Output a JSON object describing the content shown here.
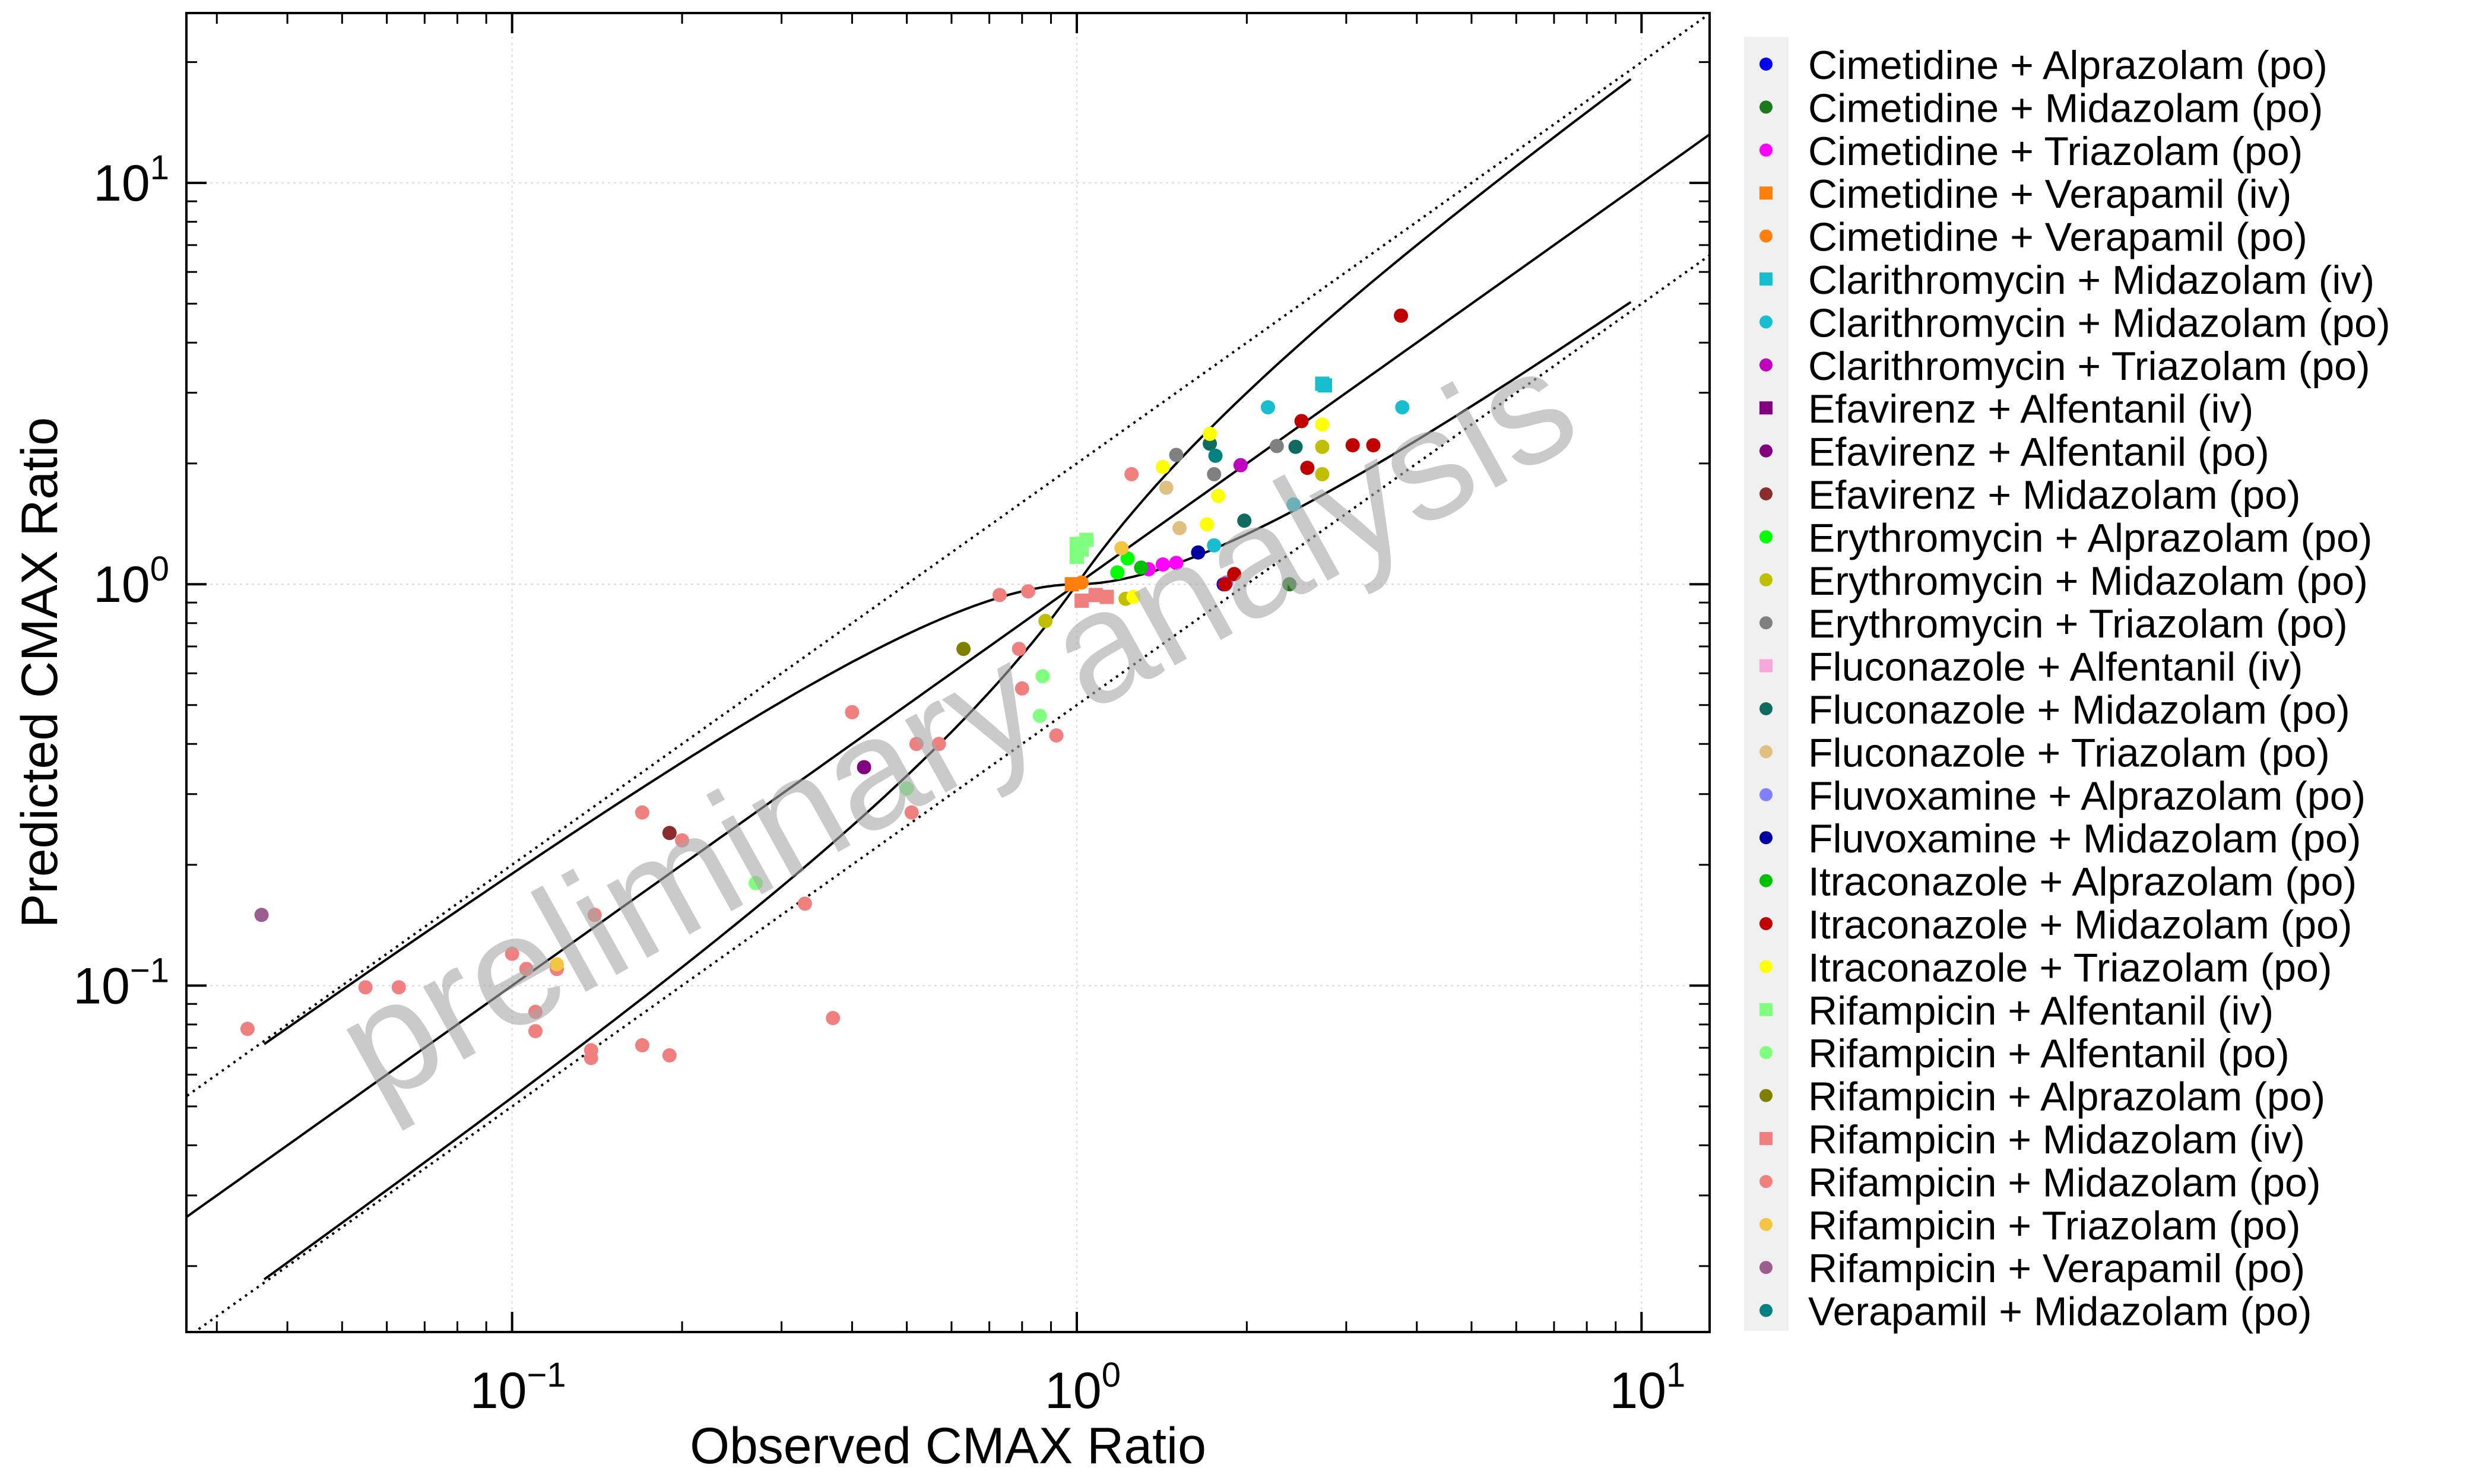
{
  "chart_data": {
    "type": "scatter",
    "xlabel": "Observed CMAX Ratio",
    "ylabel": "Predicted CMAX Ratio",
    "x_scale": "log",
    "y_scale": "log",
    "xlim": [
      0.0265,
      13.2
    ],
    "ylim": [
      0.0137,
      26.5
    ],
    "grid": true,
    "legend_position": "right",
    "watermark": "preliminary analysis",
    "x_ticks": [
      {
        "base": "10",
        "exp": "−1",
        "value": 0.1
      },
      {
        "base": "10",
        "exp": "0",
        "value": 1
      },
      {
        "base": "10",
        "exp": "1",
        "value": 10
      }
    ],
    "y_ticks": [
      {
        "base": "10",
        "exp": "−1",
        "value": 0.1
      },
      {
        "base": "10",
        "exp": "0",
        "value": 1
      },
      {
        "base": "10",
        "exp": "1",
        "value": 10
      }
    ],
    "series": [
      {
        "name": "Cimetidine + Alprazolam (po)",
        "color": "#0000ff",
        "marker": "circle",
        "points": [
          [
            1.82,
            1.0
          ]
        ]
      },
      {
        "name": "Cimetidine + Midazolam (po)",
        "color": "#1b7a1b",
        "marker": "circle",
        "points": [
          [
            2.38,
            1.0
          ]
        ]
      },
      {
        "name": "Cimetidine + Triazolam (po)",
        "color": "#ff00ff",
        "marker": "circle",
        "points": [
          [
            1.42,
            1.12
          ],
          [
            1.5,
            1.13
          ],
          [
            1.34,
            1.09
          ]
        ]
      },
      {
        "name": "Cimetidine + Verapamil (iv)",
        "color": "#ff7f0e",
        "marker": "square",
        "points": [
          [
            0.98,
            1.0
          ]
        ]
      },
      {
        "name": "Cimetidine + Verapamil (po)",
        "color": "#ff7f0e",
        "marker": "circle",
        "points": [
          [
            1.02,
            1.01
          ]
        ]
      },
      {
        "name": "Clarithromycin + Midazolam (iv)",
        "color": "#17becf",
        "marker": "square",
        "points": [
          [
            2.72,
            3.16
          ],
          [
            2.75,
            3.13
          ]
        ]
      },
      {
        "name": "Clarithromycin + Midazolam (po)",
        "color": "#17becf",
        "marker": "circle",
        "points": [
          [
            2.18,
            2.76
          ],
          [
            3.77,
            2.76
          ],
          [
            2.42,
            1.58
          ],
          [
            1.75,
            1.25
          ]
        ]
      },
      {
        "name": "Clarithromycin + Triazolam (po)",
        "color": "#bf00bf",
        "marker": "circle",
        "points": [
          [
            1.95,
            1.98
          ]
        ]
      },
      {
        "name": "Efavirenz + Alfentanil (iv)",
        "color": "#800080",
        "marker": "square",
        "points": []
      },
      {
        "name": "Efavirenz + Alfentanil (po)",
        "color": "#800080",
        "marker": "circle",
        "points": [
          [
            0.42,
            0.35
          ]
        ]
      },
      {
        "name": "Efavirenz + Midazolam (po)",
        "color": "#8c2d2d",
        "marker": "circle",
        "points": [
          [
            0.19,
            0.24
          ]
        ]
      },
      {
        "name": "Erythromycin + Alprazolam (po)",
        "color": "#00ff00",
        "marker": "circle",
        "points": [
          [
            1.23,
            1.16
          ],
          [
            1.18,
            1.07
          ]
        ]
      },
      {
        "name": "Erythromycin + Midazolam (po)",
        "color": "#bfbf00",
        "marker": "circle",
        "points": [
          [
            0.88,
            0.81
          ],
          [
            1.22,
            0.92
          ],
          [
            2.72,
            2.2
          ],
          [
            2.72,
            1.88
          ]
        ]
      },
      {
        "name": "Erythromycin + Triazolam (po)",
        "color": "#808080",
        "marker": "circle",
        "points": [
          [
            1.5,
            2.1
          ],
          [
            1.75,
            1.88
          ],
          [
            2.26,
            2.21
          ]
        ]
      },
      {
        "name": "Fluconazole + Alfentanil (iv)",
        "color": "#f7a8d8",
        "marker": "square",
        "points": []
      },
      {
        "name": "Fluconazole + Midazolam (po)",
        "color": "#0f6b5f",
        "marker": "circle",
        "points": [
          [
            1.72,
            2.24
          ],
          [
            2.44,
            2.2
          ],
          [
            1.98,
            1.44
          ]
        ]
      },
      {
        "name": "Fluconazole + Triazolam (po)",
        "color": "#e0c080",
        "marker": "circle",
        "points": [
          [
            1.44,
            1.74
          ],
          [
            1.52,
            1.38
          ]
        ]
      },
      {
        "name": "Fluvoxamine + Alprazolam (po)",
        "color": "#7f7fff",
        "marker": "circle",
        "points": [
          [
            1.84,
            1.01
          ]
        ]
      },
      {
        "name": "Fluvoxamine + Midazolam (po)",
        "color": "#0000a0",
        "marker": "circle",
        "points": [
          [
            1.64,
            1.2
          ]
        ]
      },
      {
        "name": "Itraconazole + Alprazolam (po)",
        "color": "#00c000",
        "marker": "circle",
        "points": [
          [
            1.3,
            1.1
          ]
        ]
      },
      {
        "name": "Itraconazole + Midazolam (po)",
        "color": "#c00000",
        "marker": "circle",
        "points": [
          [
            3.75,
            4.67
          ],
          [
            2.5,
            2.55
          ],
          [
            3.35,
            2.22
          ],
          [
            3.08,
            2.22
          ],
          [
            2.56,
            1.95
          ],
          [
            1.9,
            1.06
          ],
          [
            1.83,
            1.0
          ]
        ]
      },
      {
        "name": "Itraconazole + Triazolam (po)",
        "color": "#ffff00",
        "marker": "circle",
        "points": [
          [
            1.72,
            2.37
          ],
          [
            2.72,
            2.5
          ],
          [
            1.42,
            1.96
          ],
          [
            1.78,
            1.66
          ],
          [
            1.7,
            1.41
          ],
          [
            1.26,
            0.93
          ]
        ]
      },
      {
        "name": "Rifampicin + Alfentanil (iv)",
        "color": "#80ff80",
        "marker": "square",
        "points": [
          [
            1.04,
            1.29
          ],
          [
            1.0,
            1.26
          ],
          [
            1.02,
            1.22
          ],
          [
            1.0,
            1.17
          ]
        ]
      },
      {
        "name": "Rifampicin + Alfentanil (po)",
        "color": "#80ff80",
        "marker": "circle",
        "points": [
          [
            0.87,
            0.59
          ],
          [
            0.86,
            0.47
          ],
          [
            0.5,
            0.31
          ],
          [
            0.27,
            0.18
          ]
        ]
      },
      {
        "name": "Rifampicin + Alprazolam (po)",
        "color": "#808000",
        "marker": "circle",
        "points": [
          [
            0.63,
            0.69
          ]
        ]
      },
      {
        "name": "Rifampicin + Midazolam (iv)",
        "color": "#f08080",
        "marker": "square",
        "points": [
          [
            1.13,
            0.93
          ],
          [
            1.02,
            0.91
          ],
          [
            1.08,
            0.94
          ]
        ]
      },
      {
        "name": "Rifampicin + Midazolam (po)",
        "color": "#f08080",
        "marker": "circle",
        "points": [
          [
            1.25,
            1.88
          ],
          [
            0.73,
            0.94
          ],
          [
            0.82,
            0.96
          ],
          [
            0.79,
            0.69
          ],
          [
            0.8,
            0.55
          ],
          [
            0.92,
            0.42
          ],
          [
            0.57,
            0.4
          ],
          [
            0.52,
            0.4
          ],
          [
            0.4,
            0.48
          ],
          [
            0.51,
            0.27
          ],
          [
            0.33,
            0.16
          ],
          [
            0.37,
            0.083
          ],
          [
            0.17,
            0.27
          ],
          [
            0.2,
            0.23
          ],
          [
            0.14,
            0.15
          ],
          [
            0.1,
            0.12
          ],
          [
            0.106,
            0.11
          ],
          [
            0.12,
            0.11
          ],
          [
            0.11,
            0.086
          ],
          [
            0.11,
            0.077
          ],
          [
            0.138,
            0.069
          ],
          [
            0.138,
            0.066
          ],
          [
            0.17,
            0.071
          ],
          [
            0.19,
            0.067
          ],
          [
            0.055,
            0.099
          ],
          [
            0.063,
            0.099
          ],
          [
            0.034,
            0.078
          ]
        ]
      },
      {
        "name": "Rifampicin + Triazolam (po)",
        "color": "#f5c542",
        "marker": "circle",
        "points": [
          [
            0.12,
            0.113
          ],
          [
            1.2,
            1.23
          ]
        ]
      },
      {
        "name": "Rifampicin + Verapamil (po)",
        "color": "#9b5d8f",
        "marker": "circle",
        "points": [
          [
            0.036,
            0.15
          ]
        ]
      },
      {
        "name": "Verapamil + Midazolam (po)",
        "color": "#008080",
        "marker": "circle",
        "points": [
          [
            1.76,
            2.09
          ]
        ]
      }
    ]
  }
}
